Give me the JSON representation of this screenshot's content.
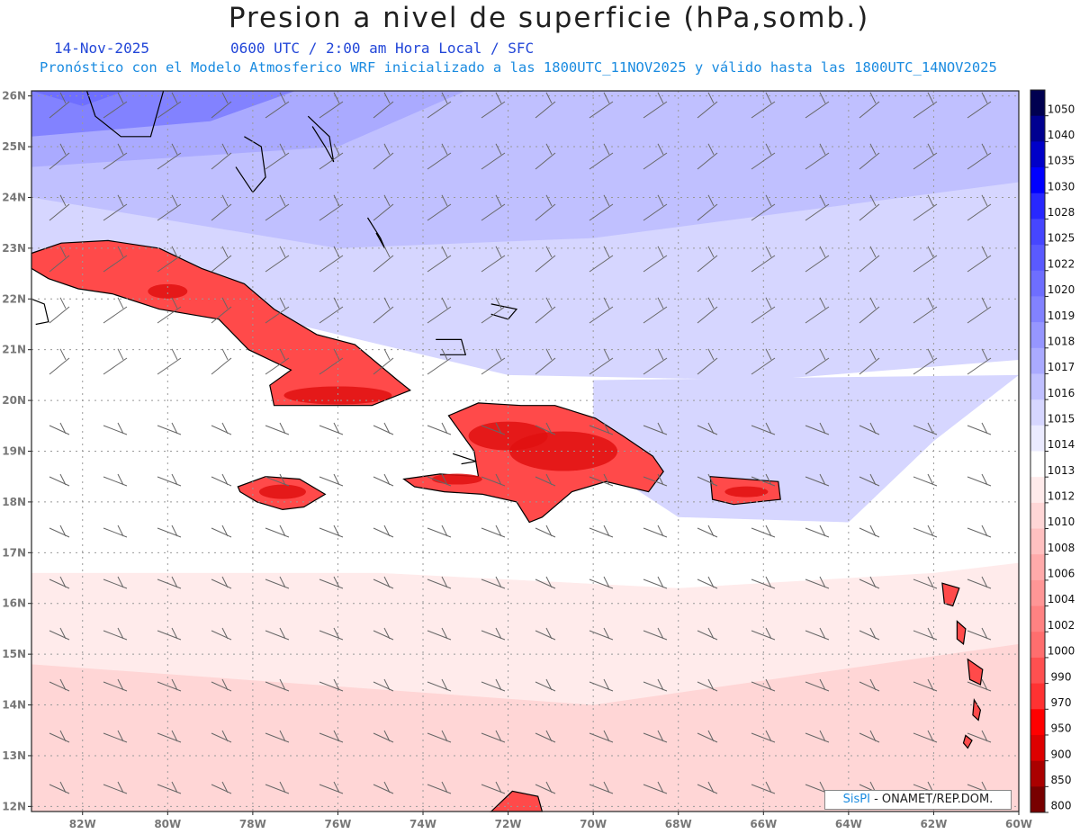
{
  "header": {
    "title": "Presion a nivel de superficie (hPa,somb.)",
    "date": "14-Nov-2025",
    "time_info": "0600 UTC / 2:00 am Hora Local / SFC",
    "forecast_info": "Pronóstico con el Modelo Atmosferico WRF inicializado a las 1800UTC_11NOV2025 y válido hasta las  1800UTC_14NOV2025"
  },
  "map": {
    "lon_range": [
      -83.2,
      -60
    ],
    "lat_range": [
      11.9,
      26.1
    ],
    "lon_ticks": [
      "82W",
      "80W",
      "78W",
      "76W",
      "74W",
      "72W",
      "70W",
      "68W",
      "66W",
      "64W",
      "62W",
      "60W"
    ],
    "lat_ticks": [
      "12N",
      "13N",
      "14N",
      "15N",
      "16N",
      "17N",
      "18N",
      "19N",
      "20N",
      "21N",
      "22N",
      "23N",
      "24N",
      "25N",
      "26N"
    ],
    "grid": true
  },
  "colorbar": {
    "levels": [
      "1050",
      "1040",
      "1035",
      "1030",
      "1028",
      "1025",
      "1022",
      "1020",
      "1019",
      "1018",
      "1017",
      "1016",
      "1015",
      "1014",
      "1013",
      "1012",
      "1010",
      "1008",
      "1006",
      "1004",
      "1002",
      "1000",
      "990",
      "970",
      "950",
      "900",
      "850",
      "800"
    ],
    "colors": [
      "#000050",
      "#000090",
      "#0000c8",
      "#0000ff",
      "#2828ff",
      "#4646ff",
      "#5a5aff",
      "#6e6eff",
      "#8282ff",
      "#9696ff",
      "#aaaaff",
      "#c0c0ff",
      "#d6d6ff",
      "#ebebff",
      "#ffffff",
      "#ffebeb",
      "#ffd6d6",
      "#ffc0c0",
      "#ffaaaa",
      "#ff9696",
      "#ff8282",
      "#ff6e6e",
      "#ff5050",
      "#ff3232",
      "#ff0000",
      "#dd0000",
      "#aa0000",
      "#780000"
    ]
  },
  "credit": {
    "brand": "SisPI",
    "org": "- ONAMET/REP.DOM."
  }
}
